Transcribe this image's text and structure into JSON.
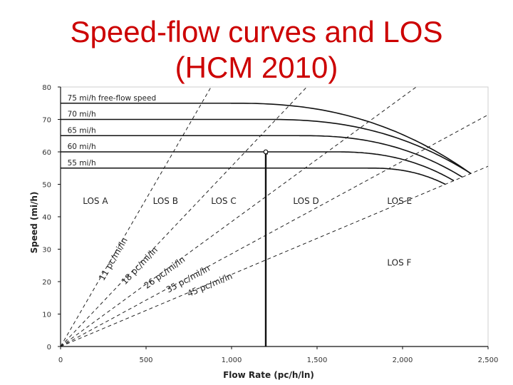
{
  "title_line1": "Speed-flow curves and LOS",
  "title_line2": "(HCM 2010)",
  "chart_data": {
    "type": "line",
    "xlabel": "Flow Rate (pc/h/ln)",
    "ylabel": "Speed (mi/h)",
    "xlim": [
      0,
      2500
    ],
    "ylim": [
      0,
      80
    ],
    "x_ticks": [
      0,
      500,
      1000,
      1500,
      2000,
      2500
    ],
    "x_tick_labels": [
      "0",
      "500",
      "1,000",
      "1,500",
      "2,000",
      "2,500"
    ],
    "y_ticks": [
      0,
      10,
      20,
      30,
      40,
      50,
      60,
      70,
      80
    ],
    "y_tick_labels": [
      "0",
      "10",
      "20",
      "30",
      "40",
      "50",
      "60",
      "70",
      "80"
    ],
    "grid": false,
    "series": [
      {
        "name": "75 mi/h free-flow speed",
        "ffs": 75,
        "breakpoint": 1000,
        "capacity": 2400,
        "speed_at_capacity": 53.3
      },
      {
        "name": "70 mi/h",
        "ffs": 70,
        "breakpoint": 1200,
        "capacity": 2400,
        "speed_at_capacity": 53.3
      },
      {
        "name": "65 mi/h",
        "ffs": 65,
        "breakpoint": 1400,
        "capacity": 2350,
        "speed_at_capacity": 52.2
      },
      {
        "name": "60 mi/h",
        "ffs": 60,
        "breakpoint": 1600,
        "capacity": 2300,
        "speed_at_capacity": 51.1
      },
      {
        "name": "55 mi/h",
        "ffs": 55,
        "breakpoint": 1800,
        "capacity": 2250,
        "speed_at_capacity": 50.0
      }
    ],
    "density_lines": [
      {
        "label": "11 pc/mi/ln",
        "density": 11
      },
      {
        "label": "18 pc/mi/ln",
        "density": 18
      },
      {
        "label": "26 pc/mi/ln",
        "density": 26
      },
      {
        "label": "35 pc/mi/ln",
        "density": 35
      },
      {
        "label": "45 pc/mi/ln",
        "density": 45
      }
    ],
    "los_labels": [
      {
        "text": "LOS A",
        "x": 130,
        "y": 44
      },
      {
        "text": "LOS B",
        "x": 540,
        "y": 44
      },
      {
        "text": "LOS C",
        "x": 880,
        "y": 44
      },
      {
        "text": "LOS D",
        "x": 1360,
        "y": 44
      },
      {
        "text": "LOS E",
        "x": 1910,
        "y": 44
      },
      {
        "text": "LOS F",
        "x": 1910,
        "y": 25
      }
    ],
    "example_point": {
      "flow": 1200,
      "speed": 60
    }
  }
}
